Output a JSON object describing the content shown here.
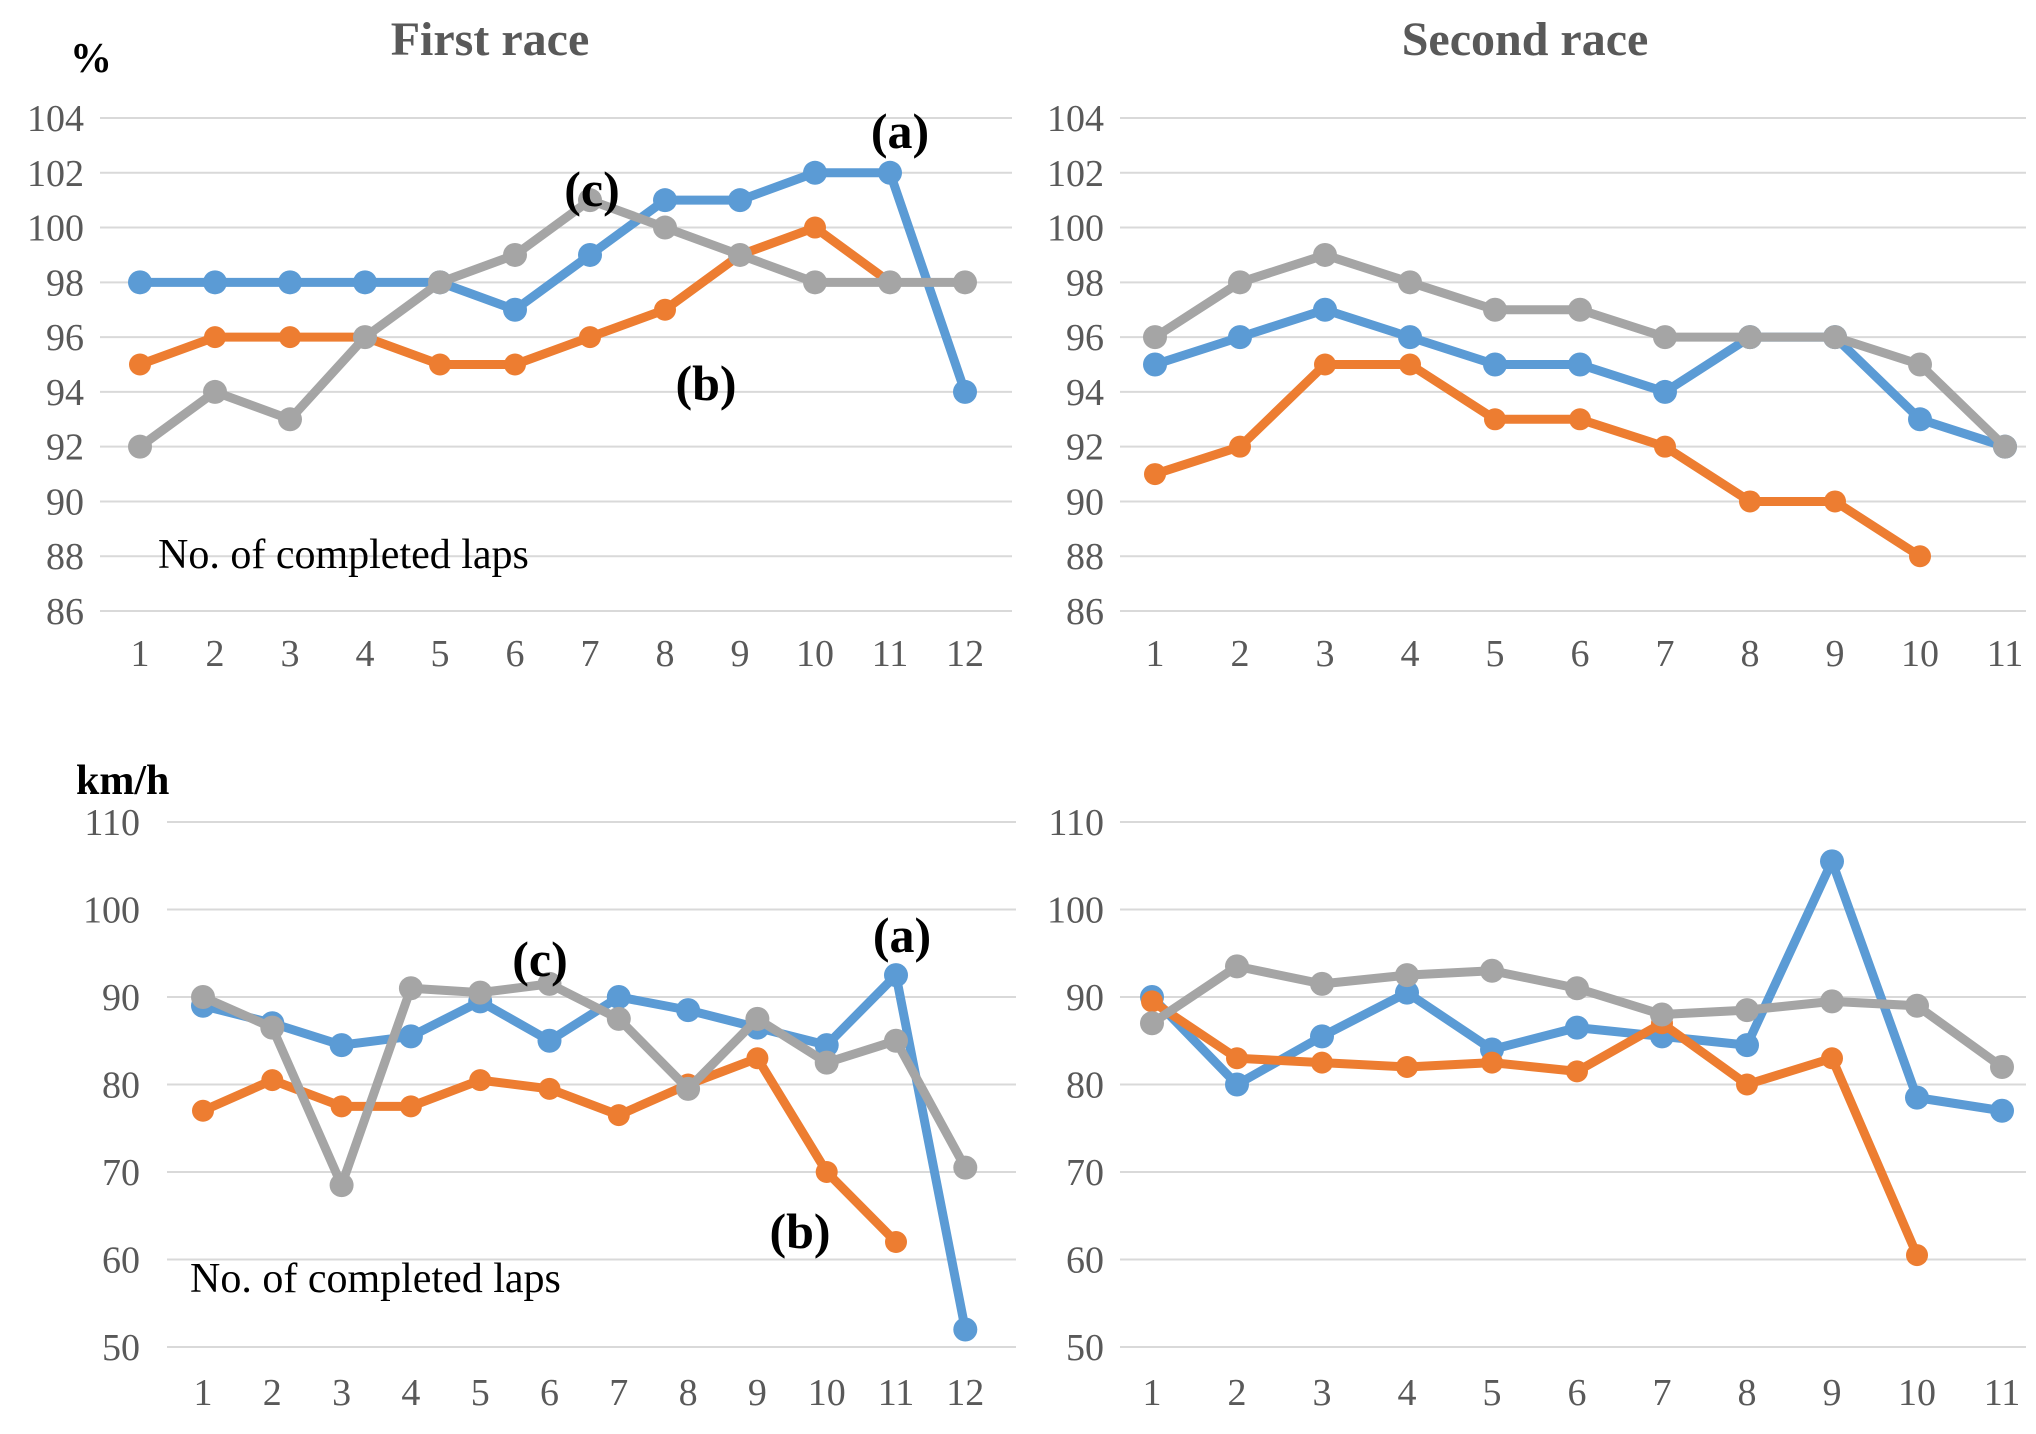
{
  "figure": {
    "background": "#FFFFFF",
    "gridline_color": "#D9D9D9",
    "tick_text_color": "#595959",
    "title_text_color": "#595959",
    "annotation_text_color": "#000000"
  },
  "chart_data": [
    {
      "id": "first-race-percent",
      "type": "line",
      "title": "First race",
      "unit_label": "%",
      "x_label": "No. of completed laps",
      "x": [
        1,
        2,
        3,
        4,
        5,
        6,
        7,
        8,
        9,
        10,
        11,
        12
      ],
      "y_ticks": [
        104,
        102,
        100,
        98,
        96,
        94,
        92,
        90,
        88,
        86
      ],
      "ylim": [
        86,
        104
      ],
      "grid": true,
      "legend": "inline-annotations",
      "series": [
        {
          "name": "(a)",
          "color": "#5B9BD5",
          "values": [
            98,
            98,
            98,
            98,
            98,
            97,
            99,
            101,
            101,
            102,
            102,
            94
          ]
        },
        {
          "name": "(b)",
          "color": "#ED7D31",
          "values": [
            95,
            96,
            96,
            96,
            95,
            95,
            96,
            97,
            99,
            100,
            98
          ]
        },
        {
          "name": "(c)",
          "color": "#A5A5A5",
          "values": [
            92,
            94,
            93,
            96,
            98,
            99,
            101,
            100,
            99,
            98,
            98,
            98
          ]
        }
      ],
      "annotations": [
        "(a)",
        "(b)",
        "(c)"
      ]
    },
    {
      "id": "second-race-percent",
      "type": "line",
      "title": "Second race",
      "unit_label": "",
      "x_label": "",
      "x": [
        1,
        2,
        3,
        4,
        5,
        6,
        7,
        8,
        9,
        10,
        11
      ],
      "y_ticks": [
        104,
        102,
        100,
        98,
        96,
        94,
        92,
        90,
        88,
        86
      ],
      "ylim": [
        86,
        104
      ],
      "grid": true,
      "legend": "none",
      "series": [
        {
          "name": "(a)",
          "color": "#5B9BD5",
          "values": [
            95,
            96,
            97,
            96,
            95,
            95,
            94,
            96,
            96,
            93,
            92
          ]
        },
        {
          "name": "(b)",
          "color": "#ED7D31",
          "values": [
            91,
            92,
            95,
            95,
            93,
            93,
            92,
            90,
            90,
            88
          ]
        },
        {
          "name": "(c)",
          "color": "#A5A5A5",
          "values": [
            96,
            98,
            99,
            98,
            97,
            97,
            96,
            96,
            96,
            95,
            92
          ]
        }
      ],
      "annotations": []
    },
    {
      "id": "first-race-speed",
      "type": "line",
      "title": "",
      "unit_label": "km/h",
      "x_label": "No. of completed laps",
      "x": [
        1,
        2,
        3,
        4,
        5,
        6,
        7,
        8,
        9,
        10,
        11,
        12
      ],
      "y_ticks": [
        110,
        100,
        90,
        80,
        70,
        60,
        50
      ],
      "ylim": [
        50,
        110
      ],
      "grid": true,
      "legend": "inline-annotations",
      "series": [
        {
          "name": "(a)",
          "color": "#5B9BD5",
          "values": [
            89,
            87,
            84.5,
            85.5,
            89.5,
            85,
            90,
            88.5,
            86.5,
            84.5,
            92.5,
            52
          ]
        },
        {
          "name": "(b)",
          "color": "#ED7D31",
          "values": [
            77,
            80.5,
            77.5,
            77.5,
            80.5,
            79.5,
            76.5,
            80,
            83,
            70,
            62
          ]
        },
        {
          "name": "(c)",
          "color": "#A5A5A5",
          "values": [
            90,
            86.5,
            68.5,
            91,
            90.5,
            91.5,
            87.5,
            79.5,
            87.5,
            82.5,
            85,
            70.5
          ]
        }
      ],
      "annotations": [
        "(a)",
        "(b)",
        "(c)"
      ]
    },
    {
      "id": "second-race-speed",
      "type": "line",
      "title": "",
      "unit_label": "",
      "x_label": "",
      "x": [
        1,
        2,
        3,
        4,
        5,
        6,
        7,
        8,
        9,
        10,
        11
      ],
      "y_ticks": [
        110,
        100,
        90,
        80,
        70,
        60,
        50
      ],
      "ylim": [
        50,
        110
      ],
      "grid": true,
      "legend": "none",
      "series": [
        {
          "name": "(a)",
          "color": "#5B9BD5",
          "values": [
            90,
            80,
            85.5,
            90.5,
            84,
            86.5,
            85.5,
            84.5,
            105.5,
            78.5,
            77
          ]
        },
        {
          "name": "(b)",
          "color": "#ED7D31",
          "values": [
            89.5,
            83,
            82.5,
            82,
            82.5,
            81.5,
            87,
            80,
            83,
            60.5
          ]
        },
        {
          "name": "(c)",
          "color": "#A5A5A5",
          "values": [
            87,
            93.5,
            91.5,
            92.5,
            93,
            91,
            88,
            88.5,
            89.5,
            89,
            82
          ]
        }
      ],
      "annotations": []
    }
  ]
}
